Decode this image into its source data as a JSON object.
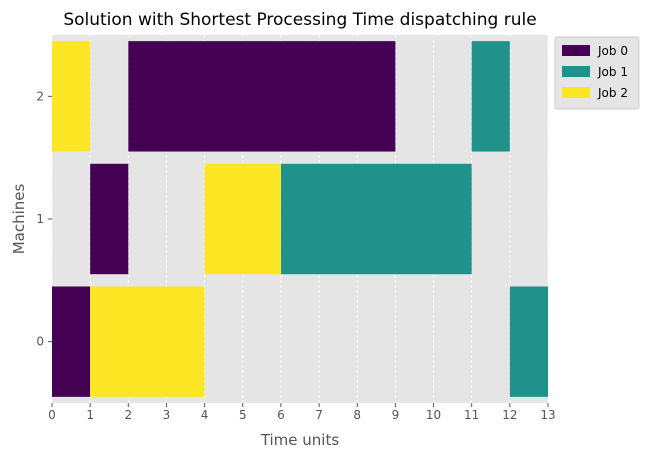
{
  "chart_data": {
    "type": "gantt",
    "title": "Solution with Shortest Processing Time dispatching rule",
    "xlabel": "Time units",
    "ylabel": "Machines",
    "xlim": [
      0,
      13
    ],
    "x_ticks": [
      0,
      1,
      2,
      3,
      4,
      5,
      6,
      7,
      8,
      9,
      10,
      11,
      12,
      13
    ],
    "y_categories": [
      "0",
      "1",
      "2"
    ],
    "grid": true,
    "legend_position": "upper-right-outside",
    "series": [
      {
        "name": "Job 0",
        "color": "#440154",
        "tasks": [
          {
            "machine": "0",
            "start": 0,
            "end": 1
          },
          {
            "machine": "1",
            "start": 1,
            "end": 2
          },
          {
            "machine": "2",
            "start": 2,
            "end": 9
          }
        ]
      },
      {
        "name": "Job 1",
        "color": "#21918c",
        "tasks": [
          {
            "machine": "1",
            "start": 6,
            "end": 11
          },
          {
            "machine": "2",
            "start": 11,
            "end": 12
          },
          {
            "machine": "0",
            "start": 12,
            "end": 13
          }
        ]
      },
      {
        "name": "Job 2",
        "color": "#fde725",
        "tasks": [
          {
            "machine": "2",
            "start": 0,
            "end": 1
          },
          {
            "machine": "0",
            "start": 1,
            "end": 4
          },
          {
            "machine": "1",
            "start": 4,
            "end": 6
          }
        ]
      }
    ]
  }
}
